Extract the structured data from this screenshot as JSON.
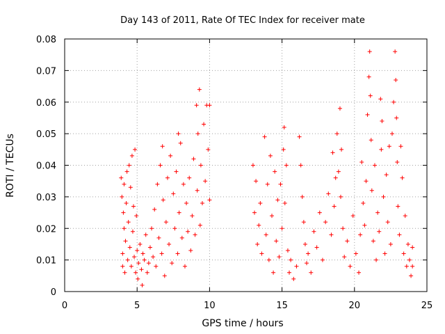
{
  "chart_data": {
    "type": "scatter",
    "title": "Day 143 of 2011, Rate Of TEC Index for receiver mate",
    "xlabel": "GPS time / hours",
    "ylabel": "ROTI / TECUs",
    "xlim": [
      0,
      25
    ],
    "ylim": [
      0,
      0.08
    ],
    "x_ticks": [
      0,
      5,
      10,
      15,
      20,
      25
    ],
    "y_ticks": [
      0,
      0.01,
      0.02,
      0.03,
      0.04,
      0.05,
      0.06,
      0.07,
      0.08
    ],
    "x_tick_labels": [
      "0",
      "5",
      "10",
      "15",
      "20",
      "25"
    ],
    "y_tick_labels": [
      "0",
      "0.01",
      "0.02",
      "0.03",
      "0.04",
      "0.05",
      "0.06",
      "0.07",
      "0.08"
    ],
    "grid": true,
    "marker": "plus",
    "color": "#ff0000",
    "series": [
      {
        "points": [
          [
            3.9,
            0.036
          ],
          [
            3.95,
            0.03
          ],
          [
            4.0,
            0.012
          ],
          [
            4.0,
            0.008
          ],
          [
            4.05,
            0.025
          ],
          [
            4.1,
            0.02
          ],
          [
            4.1,
            0.034
          ],
          [
            4.15,
            0.006
          ],
          [
            4.2,
            0.016
          ],
          [
            4.25,
            0.028
          ],
          [
            4.3,
            0.038
          ],
          [
            4.35,
            0.01
          ],
          [
            4.4,
            0.022
          ],
          [
            4.45,
            0.04
          ],
          [
            4.5,
            0.014
          ],
          [
            4.55,
            0.033
          ],
          [
            4.6,
            0.008
          ],
          [
            4.65,
            0.043
          ],
          [
            4.7,
            0.019
          ],
          [
            4.75,
            0.027
          ],
          [
            4.8,
            0.011
          ],
          [
            4.85,
            0.045
          ],
          [
            4.9,
            0.006
          ],
          [
            4.95,
            0.024
          ],
          [
            5.0,
            0.013
          ],
          [
            5.05,
            0.004
          ],
          [
            5.1,
            0.009
          ],
          [
            5.2,
            0.015
          ],
          [
            5.3,
            0.007
          ],
          [
            5.35,
            0.002
          ],
          [
            5.4,
            0.012
          ],
          [
            5.5,
            0.01
          ],
          [
            5.6,
            0.018
          ],
          [
            5.7,
            0.006
          ],
          [
            5.8,
            0.009
          ],
          [
            5.9,
            0.014
          ],
          [
            6.0,
            0.02
          ],
          [
            6.1,
            0.011
          ],
          [
            6.2,
            0.026
          ],
          [
            6.3,
            0.008
          ],
          [
            6.4,
            0.034
          ],
          [
            6.5,
            0.017
          ],
          [
            6.6,
            0.04
          ],
          [
            6.7,
            0.012
          ],
          [
            6.75,
            0.046
          ],
          [
            6.8,
            0.029
          ],
          [
            6.9,
            0.005
          ],
          [
            7.0,
            0.022
          ],
          [
            7.1,
            0.036
          ],
          [
            7.2,
            0.015
          ],
          [
            7.3,
            0.043
          ],
          [
            7.4,
            0.009
          ],
          [
            7.5,
            0.031
          ],
          [
            7.6,
            0.02
          ],
          [
            7.7,
            0.038
          ],
          [
            7.8,
            0.012
          ],
          [
            7.85,
            0.05
          ],
          [
            7.9,
            0.025
          ],
          [
            8.0,
            0.047
          ],
          [
            8.1,
            0.017
          ],
          [
            8.2,
            0.034
          ],
          [
            8.3,
            0.008
          ],
          [
            8.4,
            0.028
          ],
          [
            8.5,
            0.019
          ],
          [
            8.6,
            0.036
          ],
          [
            8.7,
            0.013
          ],
          [
            8.8,
            0.024
          ],
          [
            8.9,
            0.042
          ],
          [
            9.0,
            0.018
          ],
          [
            9.1,
            0.059
          ],
          [
            9.15,
            0.032
          ],
          [
            9.2,
            0.05
          ],
          [
            9.3,
            0.064
          ],
          [
            9.35,
            0.021
          ],
          [
            9.4,
            0.04
          ],
          [
            9.5,
            0.028
          ],
          [
            9.6,
            0.053
          ],
          [
            9.7,
            0.035
          ],
          [
            9.8,
            0.059
          ],
          [
            9.9,
            0.045
          ],
          [
            10.0,
            0.059
          ],
          [
            10.0,
            0.029
          ],
          [
            13.0,
            0.04
          ],
          [
            13.1,
            0.025
          ],
          [
            13.2,
            0.035
          ],
          [
            13.3,
            0.015
          ],
          [
            13.4,
            0.021
          ],
          [
            13.5,
            0.028
          ],
          [
            13.6,
            0.012
          ],
          [
            13.8,
            0.049
          ],
          [
            13.9,
            0.018
          ],
          [
            14.0,
            0.034
          ],
          [
            14.1,
            0.01
          ],
          [
            14.2,
            0.043
          ],
          [
            14.3,
            0.024
          ],
          [
            14.4,
            0.006
          ],
          [
            14.5,
            0.038
          ],
          [
            14.6,
            0.016
          ],
          [
            14.7,
            0.029
          ],
          [
            14.8,
            0.011
          ],
          [
            14.9,
            0.034
          ],
          [
            15.0,
            0.02
          ],
          [
            15.1,
            0.045
          ],
          [
            15.15,
            0.052
          ],
          [
            15.2,
            0.028
          ],
          [
            15.3,
            0.04
          ],
          [
            15.4,
            0.013
          ],
          [
            15.5,
            0.006
          ],
          [
            15.6,
            0.01
          ],
          [
            15.8,
            0.004
          ],
          [
            16.0,
            0.008
          ],
          [
            16.2,
            0.049
          ],
          [
            16.3,
            0.04
          ],
          [
            16.4,
            0.03
          ],
          [
            16.5,
            0.022
          ],
          [
            16.6,
            0.015
          ],
          [
            16.7,
            0.009
          ],
          [
            16.8,
            0.012
          ],
          [
            17.0,
            0.006
          ],
          [
            17.2,
            0.019
          ],
          [
            17.4,
            0.014
          ],
          [
            17.6,
            0.025
          ],
          [
            17.8,
            0.01
          ],
          [
            18.0,
            0.022
          ],
          [
            18.2,
            0.031
          ],
          [
            18.4,
            0.018
          ],
          [
            18.5,
            0.044
          ],
          [
            18.6,
            0.027
          ],
          [
            18.7,
            0.036
          ],
          [
            18.8,
            0.05
          ],
          [
            18.9,
            0.038
          ],
          [
            19.0,
            0.058
          ],
          [
            19.05,
            0.03
          ],
          [
            19.1,
            0.045
          ],
          [
            19.2,
            0.02
          ],
          [
            19.3,
            0.011
          ],
          [
            19.5,
            0.016
          ],
          [
            19.7,
            0.008
          ],
          [
            19.9,
            0.024
          ],
          [
            20.1,
            0.012
          ],
          [
            20.3,
            0.006
          ],
          [
            20.4,
            0.018
          ],
          [
            20.5,
            0.041
          ],
          [
            20.6,
            0.028
          ],
          [
            20.7,
            0.021
          ],
          [
            20.8,
            0.035
          ],
          [
            20.9,
            0.056
          ],
          [
            21.0,
            0.068
          ],
          [
            21.05,
            0.076
          ],
          [
            21.1,
            0.062
          ],
          [
            21.15,
            0.048
          ],
          [
            21.2,
            0.032
          ],
          [
            21.3,
            0.016
          ],
          [
            21.4,
            0.04
          ],
          [
            21.5,
            0.01
          ],
          [
            21.6,
            0.025
          ],
          [
            21.7,
            0.019
          ],
          [
            21.8,
            0.061
          ],
          [
            21.85,
            0.045
          ],
          [
            21.9,
            0.054
          ],
          [
            22.0,
            0.03
          ],
          [
            22.1,
            0.012
          ],
          [
            22.2,
            0.037
          ],
          [
            22.3,
            0.022
          ],
          [
            22.4,
            0.046
          ],
          [
            22.5,
            0.015
          ],
          [
            22.6,
            0.05
          ],
          [
            22.7,
            0.06
          ],
          [
            22.8,
            0.076
          ],
          [
            22.85,
            0.067
          ],
          [
            22.9,
            0.055
          ],
          [
            22.95,
            0.041
          ],
          [
            23.0,
            0.027
          ],
          [
            23.1,
            0.018
          ],
          [
            23.2,
            0.046
          ],
          [
            23.3,
            0.036
          ],
          [
            23.4,
            0.012
          ],
          [
            23.5,
            0.024
          ],
          [
            23.6,
            0.008
          ],
          [
            23.7,
            0.015
          ],
          [
            23.8,
            0.01
          ],
          [
            23.9,
            0.005
          ],
          [
            24.0,
            0.014
          ],
          [
            24.0,
            0.008
          ]
        ]
      }
    ]
  }
}
